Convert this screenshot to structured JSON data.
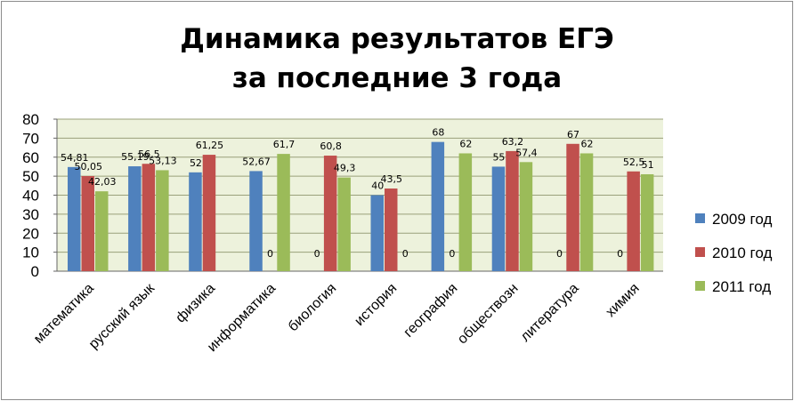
{
  "chart_data": {
    "type": "bar",
    "title_line1": "Динамика результатов ЕГЭ",
    "title_line2": "за последние 3 года",
    "xlabel": "",
    "ylabel": "",
    "ylim": [
      0,
      80
    ],
    "yticks": [
      "0",
      "10",
      "20",
      "30",
      "40",
      "50",
      "60",
      "70",
      "80"
    ],
    "grid": true,
    "legend_position": "right",
    "categories": [
      "математика",
      "русский язык",
      "физика",
      "информатика",
      "биология",
      "история",
      "география",
      "обществозн",
      "литература",
      "химия"
    ],
    "series": [
      {
        "name": "2009 год",
        "color": "#4f81bd",
        "values": [
          54.81,
          55.19,
          52,
          52.67,
          0,
          40,
          68,
          55,
          0,
          0
        ],
        "labels": [
          "54,81",
          "55,19",
          "52",
          "52,67",
          "0",
          "40",
          "68",
          "55",
          "0",
          "0"
        ]
      },
      {
        "name": "2010 год",
        "color": "#c0504d",
        "values": [
          50.05,
          56.5,
          61.25,
          0,
          60.8,
          43.5,
          0,
          63.2,
          67,
          52.5
        ],
        "labels": [
          "50,05",
          "56,5",
          "61,25",
          "0",
          "60,8",
          "43,5",
          "0",
          "63,2",
          "67",
          "52,5"
        ]
      },
      {
        "name": "2011 год",
        "color": "#9bbb59",
        "values": [
          42.03,
          53.13,
          0,
          61.7,
          49.3,
          0,
          62,
          57.4,
          62,
          51
        ],
        "labels": [
          "42,03",
          "53,13",
          "",
          "61,7",
          "49,3",
          "0",
          "62",
          "57,4",
          "62",
          "51"
        ]
      }
    ]
  },
  "style": {
    "plot_background": "#edf2dc",
    "gridline_color": "#9aa07a"
  }
}
